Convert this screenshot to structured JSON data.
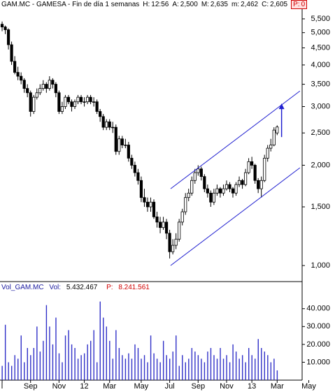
{
  "chart_data": {
    "type": "candlestick",
    "title": "GAM.MC - GAMESA - Fin de día 1 semanas",
    "quote": [
      {
        "key": "H:",
        "text": "12:56"
      },
      {
        "key": "A:",
        "value": 2500,
        "label": "2,500"
      },
      {
        "key": "M:",
        "value": 2635,
        "label": "2,635"
      },
      {
        "key": "m:",
        "value": 2462,
        "label": "2,462"
      },
      {
        "key": "C:",
        "value": 2605,
        "label": "2,605"
      },
      {
        "key": "P:",
        "value": 0
      }
    ],
    "log_scale": true,
    "ylim": [
      908,
      5970
    ],
    "yticks": [
      {
        "value": 1000,
        "label": "1,000"
      },
      {
        "value": 1500,
        "label": "1,500"
      },
      {
        "value": 2000,
        "label": "2,000"
      },
      {
        "value": 2500,
        "label": "2,500"
      },
      {
        "value": 3000,
        "label": "3,000"
      },
      {
        "value": 3500,
        "label": "3,500"
      },
      {
        "value": 4000,
        "label": "4,000"
      },
      {
        "value": 4500,
        "label": "4,500"
      },
      {
        "value": 5000,
        "label": "5,000"
      },
      {
        "value": 5500,
        "label": "5,500"
      }
    ],
    "xlim": [
      -0.67,
      94.9
    ],
    "xticks": [
      {
        "value": 0,
        "label": "l"
      },
      {
        "value": 9,
        "label": "Sep"
      },
      {
        "value": 18,
        "label": "Nov"
      },
      {
        "value": 26,
        "label": "12"
      },
      {
        "value": 34,
        "label": "Mar"
      },
      {
        "value": 44,
        "label": "May"
      },
      {
        "value": 53,
        "label": "Jul"
      },
      {
        "value": 62,
        "label": "Sep"
      },
      {
        "value": 71,
        "label": "Nov"
      },
      {
        "value": 79,
        "label": "13"
      },
      {
        "value": 87,
        "label": "Mar"
      },
      {
        "value": 97,
        "label": "May"
      }
    ],
    "ohlc": [
      [
        5300,
        5400,
        5050,
        5200
      ],
      [
        5200,
        5250,
        4950,
        5100
      ],
      [
        5100,
        5150,
        4450,
        4600
      ],
      [
        4600,
        4700,
        4000,
        4100
      ],
      [
        4100,
        4250,
        3750,
        3800
      ],
      [
        3800,
        3950,
        3600,
        3700
      ],
      [
        3700,
        3800,
        3500,
        3600
      ],
      [
        3600,
        3650,
        3300,
        3400
      ],
      [
        3400,
        3500,
        3200,
        3300
      ],
      [
        3300,
        3350,
        2800,
        2900
      ],
      [
        2900,
        3250,
        2850,
        3200
      ],
      [
        3200,
        3400,
        3150,
        3300
      ],
      [
        3300,
        3500,
        3250,
        3400
      ],
      [
        3400,
        3600,
        3350,
        3500
      ],
      [
        3500,
        3550,
        3300,
        3400
      ],
      [
        3400,
        3700,
        3350,
        3600
      ],
      [
        3600,
        3650,
        3400,
        3500
      ],
      [
        3500,
        3550,
        3200,
        3300
      ],
      [
        3300,
        3350,
        2850,
        2900
      ],
      [
        2900,
        3100,
        2850,
        3000
      ],
      [
        3000,
        3250,
        2950,
        3200
      ],
      [
        3200,
        3250,
        3050,
        3100
      ],
      [
        3100,
        3150,
        2900,
        3000
      ],
      [
        3000,
        3150,
        2950,
        3100
      ],
      [
        3100,
        3250,
        3050,
        3200
      ],
      [
        3200,
        3250,
        3050,
        3100
      ],
      [
        3100,
        3200,
        3000,
        3100
      ],
      [
        3100,
        3250,
        3050,
        3200
      ],
      [
        3200,
        3250,
        3050,
        3100
      ],
      [
        3100,
        3200,
        3000,
        3100
      ],
      [
        3100,
        3150,
        2850,
        2900
      ],
      [
        2900,
        2950,
        2700,
        2800
      ],
      [
        2800,
        2850,
        2550,
        2600
      ],
      [
        2600,
        2750,
        2550,
        2700
      ],
      [
        2700,
        2750,
        2550,
        2600
      ],
      [
        2600,
        2700,
        2500,
        2600
      ],
      [
        2600,
        2650,
        2150,
        2200
      ],
      [
        2200,
        2450,
        2150,
        2400
      ],
      [
        2400,
        2450,
        2250,
        2300
      ],
      [
        2300,
        2400,
        2250,
        2300
      ],
      [
        2300,
        2350,
        2050,
        2100
      ],
      [
        2100,
        2150,
        1950,
        2000
      ],
      [
        2000,
        2050,
        1850,
        1900
      ],
      [
        1900,
        1950,
        1750,
        1800
      ],
      [
        1800,
        1850,
        1550,
        1600
      ],
      [
        1600,
        1700,
        1500,
        1550
      ],
      [
        1550,
        1600,
        1450,
        1500
      ],
      [
        1500,
        1600,
        1450,
        1550
      ],
      [
        1550,
        1580,
        1380,
        1400
      ],
      [
        1400,
        1450,
        1300,
        1350
      ],
      [
        1350,
        1400,
        1250,
        1300
      ],
      [
        1300,
        1400,
        1280,
        1350
      ],
      [
        1350,
        1380,
        1200,
        1250
      ],
      [
        1250,
        1280,
        1050,
        1100
      ],
      [
        1100,
        1200,
        1080,
        1150
      ],
      [
        1150,
        1250,
        1120,
        1200
      ],
      [
        1200,
        1380,
        1180,
        1350
      ],
      [
        1350,
        1480,
        1320,
        1450
      ],
      [
        1450,
        1650,
        1420,
        1600
      ],
      [
        1600,
        1700,
        1560,
        1650
      ],
      [
        1650,
        1850,
        1620,
        1800
      ],
      [
        1800,
        1950,
        1760,
        1900
      ],
      [
        1900,
        2000,
        1860,
        1950
      ],
      [
        1950,
        1980,
        1800,
        1850
      ],
      [
        1850,
        1880,
        1660,
        1700
      ],
      [
        1700,
        1750,
        1600,
        1650
      ],
      [
        1650,
        1680,
        1500,
        1550
      ],
      [
        1550,
        1700,
        1520,
        1650
      ],
      [
        1650,
        1750,
        1620,
        1700
      ],
      [
        1700,
        1720,
        1600,
        1650
      ],
      [
        1650,
        1750,
        1620,
        1700
      ],
      [
        1700,
        1800,
        1680,
        1750
      ],
      [
        1750,
        1780,
        1660,
        1700
      ],
      [
        1700,
        1720,
        1600,
        1650
      ],
      [
        1650,
        1780,
        1620,
        1750
      ],
      [
        1750,
        1850,
        1720,
        1800
      ],
      [
        1800,
        1820,
        1700,
        1750
      ],
      [
        1750,
        1950,
        1730,
        1900
      ],
      [
        1900,
        2100,
        1880,
        2050
      ],
      [
        2050,
        2120,
        1950,
        2000
      ],
      [
        2000,
        2020,
        1760,
        1800
      ],
      [
        1800,
        1830,
        1650,
        1700
      ],
      [
        1700,
        1850,
        1600,
        1800
      ],
      [
        1800,
        2150,
        1780,
        2100
      ],
      [
        2100,
        2300,
        2050,
        2250
      ],
      [
        2250,
        2400,
        2200,
        2300
      ],
      [
        2300,
        2600,
        2280,
        2550
      ],
      [
        2500,
        2635,
        2462,
        2605
      ]
    ],
    "channel": [
      {
        "x": [
          53.3,
          94.2
        ],
        "y": [
          1700,
          3340
        ]
      },
      {
        "x": [
          53.3,
          94.2
        ],
        "y": [
          1000,
          1965
        ]
      }
    ],
    "arrow": {
      "x": 88.4,
      "y": [
        2430,
        3065
      ]
    },
    "line_color": "#2020d0",
    "volume": {
      "name": "Vol_GAM.MC",
      "last": {
        "key": "Vol:",
        "value": 5432.467,
        "label": "5.432.467"
      },
      "avg": {
        "key": "P:",
        "value": 8241.561,
        "label": "8.241.561"
      },
      "color": "#3030c8",
      "ylim": [
        0,
        54000
      ],
      "yticks": [
        {
          "value": 10000,
          "label": "10.000"
        },
        {
          "value": 20000,
          "label": "20.000"
        },
        {
          "value": 30000,
          "label": "30.000"
        },
        {
          "value": 40000,
          "label": "40.000"
        }
      ],
      "values": [
        8000,
        31000,
        10000,
        8000,
        14000,
        12000,
        25000,
        10000,
        18000,
        14000,
        18000,
        30000,
        16000,
        22000,
        42000,
        30000,
        20000,
        35000,
        15000,
        10000,
        25000,
        28000,
        20000,
        18000,
        12000,
        14000,
        15000,
        20000,
        22000,
        28000,
        10000,
        44000,
        35000,
        30000,
        22000,
        12000,
        28000,
        18000,
        14000,
        12000,
        15000,
        12000,
        20000,
        18000,
        12000,
        14000,
        10000,
        25000,
        15000,
        12000,
        10000,
        22000,
        14000,
        12000,
        16000,
        25000,
        8000,
        14000,
        10000,
        12000,
        18000,
        16000,
        14000,
        12000,
        10000,
        16000,
        18000,
        14000,
        12000,
        18000,
        12000,
        14000,
        10000,
        20000,
        16000,
        12000,
        14000,
        10000,
        18000,
        14000,
        12000,
        23000,
        18000,
        16000,
        14000,
        10000,
        12000,
        5432.467
      ]
    }
  }
}
